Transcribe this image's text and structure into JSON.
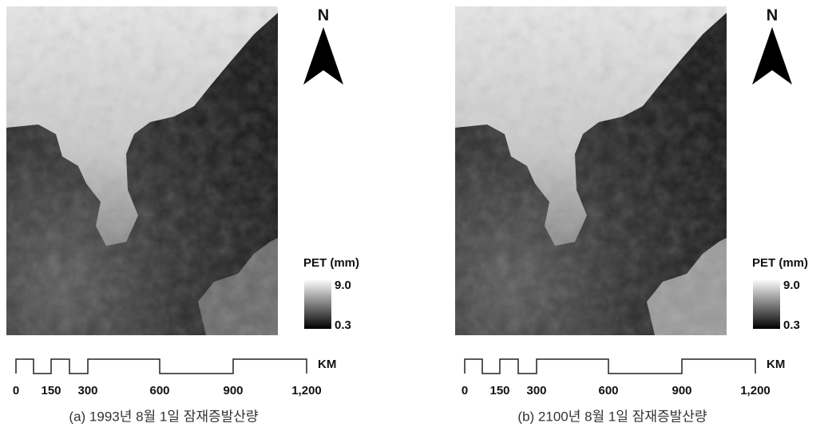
{
  "panels": [
    {
      "caption": "(a) 1993년 8월 1일 잠재증발산량",
      "north": "N",
      "legend": {
        "title": "PET (mm)",
        "max": "9.0",
        "min": "0.3"
      },
      "scale": {
        "ticks": [
          "0",
          "150",
          "300",
          "600",
          "900",
          "1,200"
        ],
        "unit": "KM"
      }
    },
    {
      "caption": "(b) 2100년 8월 1일 잠재증발산량",
      "north": "N",
      "legend": {
        "title": "PET (mm)",
        "max": "9.0",
        "min": "0.3"
      },
      "scale": {
        "ticks": [
          "0",
          "150",
          "300",
          "600",
          "900",
          "1,200"
        ],
        "unit": "KM"
      }
    }
  ]
}
